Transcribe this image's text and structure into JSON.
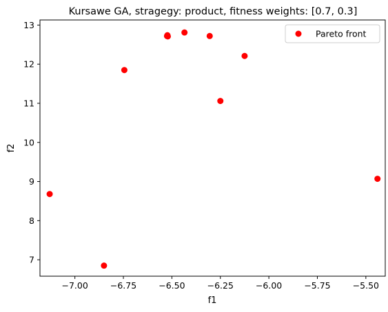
{
  "chart_data": {
    "type": "scatter",
    "title": "Kursawe GA, stragegy: product, fitness weights: [0.7, 0.3]",
    "xlabel": "f1",
    "ylabel": "f2",
    "xlim": [
      -7.18,
      -5.4
    ],
    "ylim": [
      6.58,
      13.13
    ],
    "x_ticks": [
      -7.0,
      -6.75,
      -6.5,
      -6.25,
      -6.0,
      -5.75,
      -5.5
    ],
    "x_tick_labels": [
      "−7.00",
      "−6.75",
      "−6.50",
      "−6.25",
      "−6.00",
      "−5.75",
      "−5.50"
    ],
    "y_ticks": [
      7,
      8,
      9,
      10,
      11,
      12,
      13
    ],
    "y_tick_labels": [
      "7",
      "8",
      "9",
      "10",
      "11",
      "12",
      "13"
    ],
    "grid": false,
    "legend_position": "top-right",
    "series": [
      {
        "name": "Pareto front",
        "color": "#ff0000",
        "points": [
          {
            "x": -7.13,
            "y": 8.68
          },
          {
            "x": -6.85,
            "y": 6.85
          },
          {
            "x": -6.745,
            "y": 11.85
          },
          {
            "x": -6.525,
            "y": 12.72
          },
          {
            "x": -6.523,
            "y": 12.74
          },
          {
            "x": -6.521,
            "y": 12.71
          },
          {
            "x": -6.435,
            "y": 12.81
          },
          {
            "x": -6.305,
            "y": 12.72
          },
          {
            "x": -6.25,
            "y": 11.06
          },
          {
            "x": -6.125,
            "y": 12.21
          },
          {
            "x": -5.44,
            "y": 9.07
          }
        ]
      }
    ]
  }
}
